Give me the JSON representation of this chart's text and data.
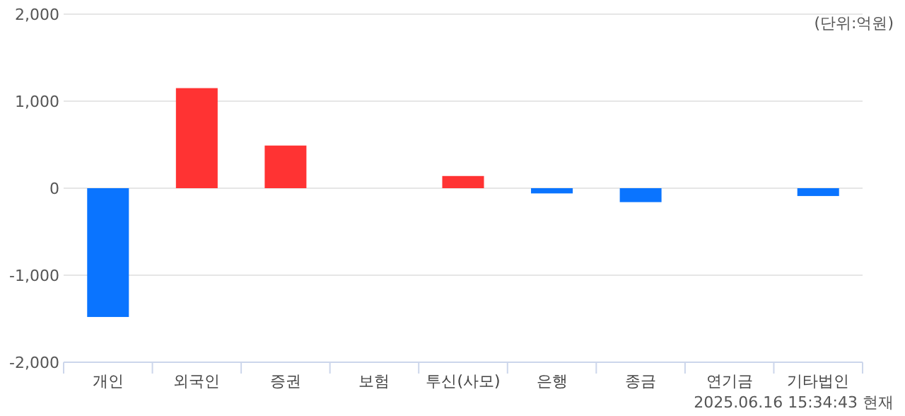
{
  "chart_data": {
    "type": "bar",
    "categories": [
      "개인",
      "외국인",
      "증권",
      "보험",
      "투신(사모)",
      "은행",
      "종금",
      "연기금",
      "기타법인"
    ],
    "values": [
      -1480,
      1150,
      490,
      0,
      140,
      -60,
      -160,
      0,
      -90
    ],
    "colors": [
      "#0a74ff",
      "#ff3333",
      "#ff3333",
      "#ff3333",
      "#ff3333",
      "#0a74ff",
      "#0a74ff",
      "#ff3333",
      "#0a74ff"
    ],
    "ylim": [
      -2000,
      2000
    ],
    "yticks": [
      {
        "value": -2000,
        "label": "-2,000"
      },
      {
        "value": -1000,
        "label": "-1,000"
      },
      0,
      {
        "value": 1000,
        "label": "1,000"
      },
      {
        "value": 2000,
        "label": "2,000"
      }
    ],
    "grid": "y",
    "annotations": [
      "(단위:억원)",
      "2025.06.16 15:34:43 현재"
    ]
  }
}
